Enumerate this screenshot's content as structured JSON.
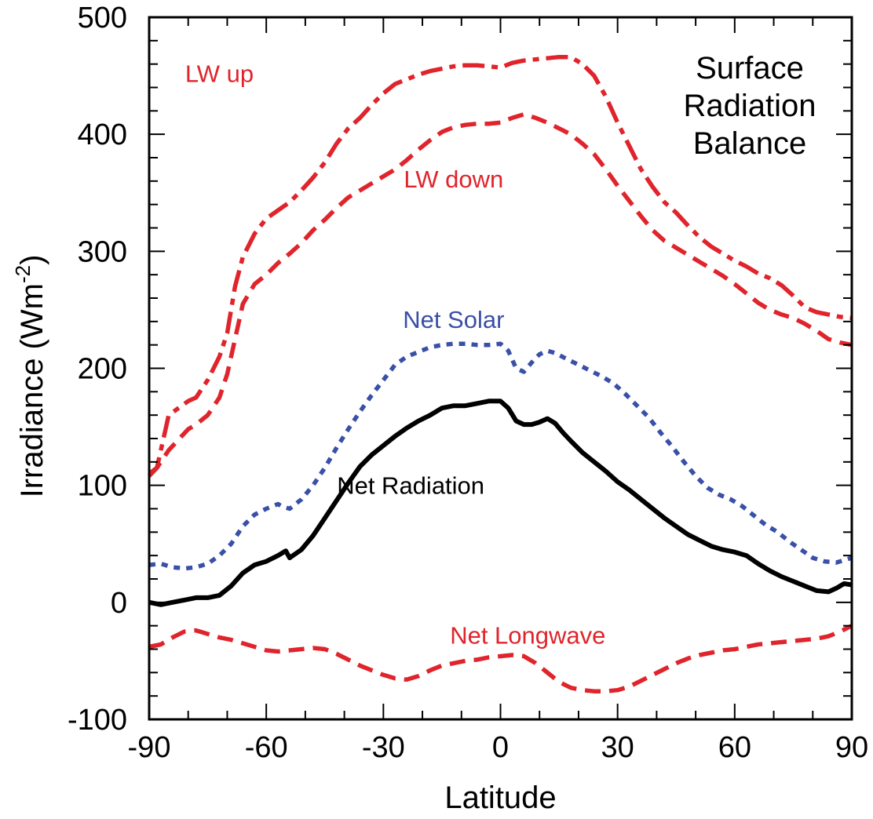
{
  "chart_data": {
    "type": "line",
    "title": [
      "Surface",
      "Radiation",
      "Balance"
    ],
    "xlabel": "Latitude",
    "ylabel": "Irradiance (Wm",
    "ylabel_sup": "-2",
    "ylabel_close": ")",
    "xlim": [
      -90,
      90
    ],
    "ylim": [
      -100,
      500
    ],
    "x_ticks": [
      -90,
      -60,
      -30,
      0,
      30,
      60,
      90
    ],
    "x_tick_labels": [
      "-90",
      "-60",
      "-30",
      "0",
      "30",
      "60",
      "90"
    ],
    "y_ticks": [
      -100,
      0,
      100,
      200,
      300,
      400,
      500
    ],
    "y_tick_labels": [
      "-100",
      "0",
      "100",
      "200",
      "300",
      "400",
      "500"
    ],
    "grid": false,
    "legend": "inline labels",
    "series": [
      {
        "name": "LW up",
        "color": "#e0242c",
        "style": "dash-dot",
        "label_at": [
          -72,
          452
        ],
        "x": [
          -90,
          -88,
          -85,
          -80,
          -78,
          -75,
          -72,
          -70,
          -68,
          -66,
          -63,
          -60,
          -57,
          -54,
          -51,
          -48,
          -45,
          -42,
          -39,
          -36,
          -33,
          -30,
          -27,
          -24,
          -21,
          -18,
          -15,
          -12,
          -9,
          -6,
          -3,
          0,
          3,
          6,
          9,
          12,
          15,
          18,
          21,
          24,
          27,
          30,
          33,
          36,
          39,
          42,
          45,
          48,
          51,
          54,
          57,
          60,
          63,
          66,
          69,
          72,
          75,
          78,
          81,
          84,
          87,
          90
        ],
        "y": [
          108,
          115,
          160,
          172,
          175,
          190,
          210,
          230,
          270,
          295,
          315,
          328,
          335,
          342,
          352,
          363,
          376,
          392,
          405,
          414,
          425,
          435,
          443,
          447,
          451,
          454,
          456,
          458,
          459,
          459,
          458,
          457,
          461,
          463,
          464,
          465,
          466,
          466,
          460,
          450,
          432,
          410,
          390,
          370,
          355,
          342,
          333,
          322,
          312,
          304,
          298,
          292,
          287,
          281,
          277,
          271,
          262,
          252,
          248,
          246,
          244,
          243
        ]
      },
      {
        "name": "LW down",
        "color": "#e0242c",
        "style": "dashed",
        "label_at": [
          -12,
          362
        ],
        "x": [
          -90,
          -88,
          -85,
          -80,
          -78,
          -75,
          -72,
          -70,
          -68,
          -66,
          -63,
          -60,
          -57,
          -54,
          -51,
          -48,
          -45,
          -42,
          -39,
          -36,
          -33,
          -30,
          -27,
          -24,
          -21,
          -18,
          -15,
          -12,
          -9,
          -6,
          -3,
          0,
          3,
          6,
          9,
          12,
          15,
          18,
          21,
          24,
          27,
          30,
          33,
          36,
          39,
          42,
          45,
          48,
          51,
          54,
          57,
          60,
          63,
          66,
          69,
          72,
          75,
          78,
          81,
          84,
          87,
          90
        ],
        "y": [
          110,
          115,
          130,
          148,
          152,
          160,
          175,
          195,
          225,
          255,
          272,
          280,
          290,
          298,
          307,
          318,
          327,
          337,
          346,
          352,
          358,
          364,
          370,
          378,
          387,
          395,
          402,
          406,
          408,
          409,
          409,
          410,
          414,
          417,
          414,
          410,
          405,
          400,
          392,
          383,
          370,
          356,
          343,
          330,
          318,
          309,
          303,
          297,
          291,
          285,
          279,
          272,
          264,
          256,
          250,
          246,
          243,
          238,
          232,
          225,
          222,
          220
        ]
      },
      {
        "name": "Net Solar",
        "color": "#3a4fa8",
        "style": "dotted",
        "label_at": [
          -12,
          242
        ],
        "x": [
          -90,
          -87,
          -84,
          -81,
          -78,
          -75,
          -72,
          -69,
          -66,
          -63,
          -60,
          -57,
          -56,
          -54,
          -51,
          -48,
          -45,
          -42,
          -39,
          -36,
          -33,
          -30,
          -27,
          -24,
          -21,
          -18,
          -15,
          -12,
          -9,
          -6,
          -3,
          0,
          2,
          4,
          6,
          8,
          10,
          12,
          14,
          17,
          20,
          23,
          26,
          29,
          32,
          35,
          38,
          41,
          44,
          47,
          50,
          53,
          56,
          59,
          62,
          65,
          68,
          71,
          74,
          77,
          80,
          83,
          86,
          88,
          90
        ],
        "y": [
          32,
          33,
          30,
          29,
          30,
          33,
          40,
          50,
          65,
          75,
          80,
          84,
          82,
          80,
          88,
          100,
          115,
          132,
          148,
          163,
          177,
          190,
          203,
          210,
          214,
          218,
          220,
          221,
          221,
          220,
          220,
          221,
          215,
          200,
          197,
          205,
          212,
          215,
          213,
          208,
          203,
          198,
          193,
          187,
          178,
          168,
          158,
          145,
          133,
          120,
          108,
          98,
          92,
          88,
          82,
          74,
          66,
          60,
          52,
          45,
          38,
          35,
          34,
          36,
          38
        ]
      },
      {
        "name": "Net Radiation",
        "color": "#000000",
        "style": "solid",
        "label_at": [
          -23,
          100
        ],
        "x": [
          -90,
          -87,
          -84,
          -81,
          -78,
          -75,
          -72,
          -69,
          -66,
          -63,
          -60,
          -57,
          -55,
          -54,
          -51,
          -48,
          -45,
          -42,
          -39,
          -36,
          -33,
          -30,
          -27,
          -24,
          -21,
          -18,
          -15,
          -12,
          -9,
          -6,
          -3,
          0,
          2,
          4,
          6,
          8,
          10,
          12,
          14,
          16,
          18,
          21,
          24,
          27,
          30,
          33,
          36,
          39,
          42,
          45,
          48,
          51,
          54,
          57,
          60,
          63,
          66,
          69,
          72,
          75,
          78,
          81,
          84,
          86,
          88,
          90
        ],
        "y": [
          0,
          -2,
          0,
          2,
          4,
          4,
          6,
          14,
          25,
          32,
          35,
          40,
          44,
          38,
          45,
          57,
          72,
          87,
          102,
          116,
          126,
          134,
          142,
          149,
          155,
          160,
          166,
          168,
          168,
          170,
          172,
          172,
          166,
          155,
          152,
          152,
          154,
          157,
          153,
          145,
          138,
          128,
          120,
          112,
          103,
          96,
          88,
          80,
          72,
          65,
          58,
          53,
          48,
          45,
          43,
          40,
          33,
          27,
          22,
          18,
          14,
          10,
          9,
          12,
          16,
          15
        ]
      },
      {
        "name": "Net Longwave",
        "color": "#e0242c",
        "style": "dashed",
        "label_at": [
          7,
          -28
        ],
        "x": [
          -90,
          -87,
          -84,
          -81,
          -78,
          -75,
          -72,
          -69,
          -66,
          -63,
          -60,
          -57,
          -54,
          -51,
          -48,
          -45,
          -42,
          -39,
          -36,
          -33,
          -30,
          -27,
          -24,
          -21,
          -18,
          -15,
          -12,
          -9,
          -6,
          -3,
          0,
          3,
          6,
          9,
          12,
          15,
          18,
          21,
          24,
          27,
          30,
          33,
          36,
          39,
          42,
          45,
          48,
          51,
          54,
          57,
          60,
          63,
          66,
          69,
          72,
          75,
          78,
          81,
          84,
          87,
          90
        ],
        "y": [
          -38,
          -36,
          -30,
          -25,
          -24,
          -27,
          -30,
          -32,
          -35,
          -38,
          -41,
          -42,
          -41,
          -40,
          -39,
          -40,
          -44,
          -49,
          -54,
          -58,
          -62,
          -65,
          -66,
          -63,
          -58,
          -54,
          -52,
          -50,
          -49,
          -47,
          -46,
          -45,
          -46,
          -52,
          -60,
          -68,
          -73,
          -75,
          -76,
          -76,
          -75,
          -72,
          -67,
          -62,
          -57,
          -52,
          -48,
          -45,
          -43,
          -41,
          -40,
          -38,
          -36,
          -35,
          -34,
          -33,
          -32,
          -31,
          -29,
          -25,
          -20
        ]
      }
    ]
  }
}
